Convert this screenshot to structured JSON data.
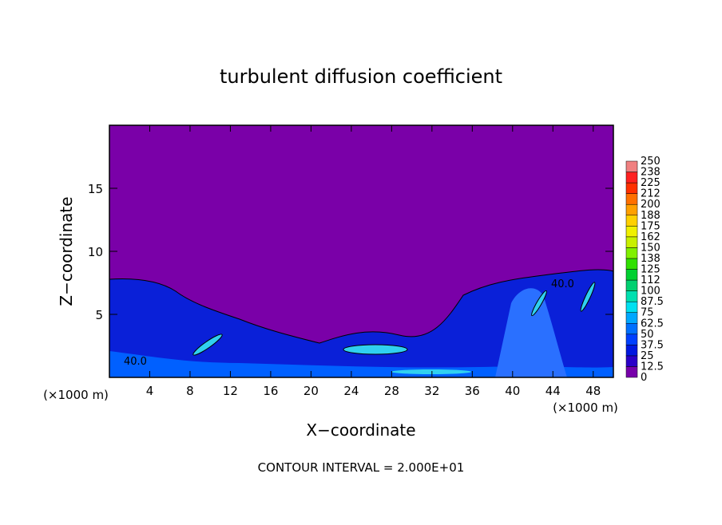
{
  "chart_data": {
    "type": "contour",
    "title": "turbulent diffusion coefficient",
    "xlabel": "X−coordinate",
    "ylabel": "Z−coordinate",
    "unit_labels": [
      "(×1000 m)",
      "(×1000 m)"
    ],
    "footnote": "CONTOUR INTERVAL = 2.000E+01",
    "annotations": [
      "40.0",
      "40.0"
    ],
    "xlim": [
      0,
      50
    ],
    "xticks": [
      4,
      8,
      12,
      16,
      20,
      24,
      28,
      32,
      36,
      40,
      44,
      48
    ],
    "ylim": [
      0,
      20
    ],
    "yticks": [
      5,
      10,
      15
    ],
    "colorbar": {
      "levels": [
        0,
        12.5,
        25,
        37.5,
        50,
        62.5,
        75,
        87.5,
        100,
        {
          "value": 112.5,
          "label": "112"
        },
        125,
        {
          "value": 137.5,
          "label": "138"
        },
        150,
        {
          "value": 162.5,
          "label": "162"
        },
        175,
        {
          "value": 187.5,
          "label": "188"
        },
        200,
        {
          "value": 212.5,
          "label": "212"
        },
        225,
        {
          "value": 237.5,
          "label": "238"
        },
        250
      ],
      "colors": [
        "#7700aa",
        "#2a00c8",
        "#0018e0",
        "#0040ff",
        "#0070ff",
        "#00a8ff",
        "#00e0f0",
        "#00e0b0",
        "#00d070",
        "#00d030",
        "#30e000",
        "#80f000",
        "#c8f000",
        "#f0f000",
        "#ffd000",
        "#ffa000",
        "#ff7000",
        "#ff3000",
        "#ff2020",
        "#f08080"
      ]
    }
  }
}
